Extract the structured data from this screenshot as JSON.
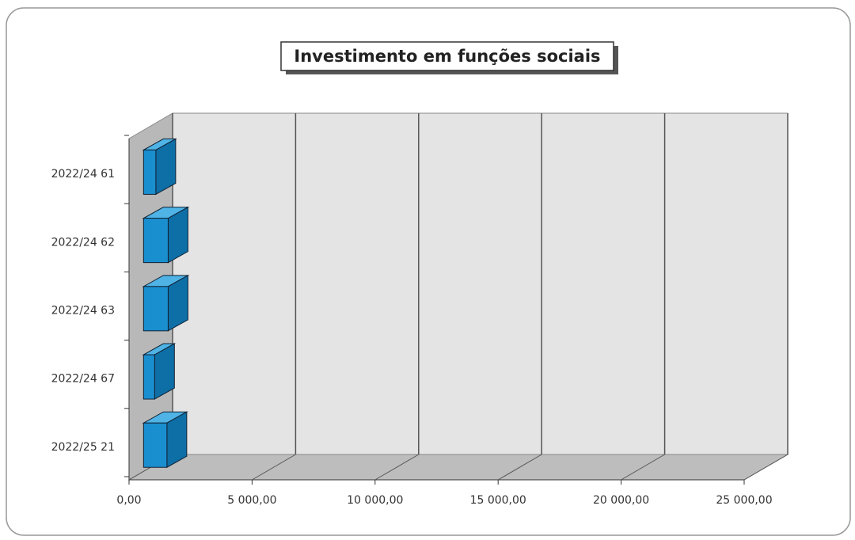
{
  "chart_data": {
    "type": "bar3d_horizontal",
    "title": "Investimento em funções sociais",
    "categories": [
      "2022/24 61",
      "2022/24 62",
      "2022/24 63",
      "2022/24 67",
      "2022/25 21"
    ],
    "values": [
      500,
      1000,
      1000,
      450,
      950
    ],
    "color": "#1a8fd0",
    "xlim": [
      0,
      25000
    ],
    "xticks": [
      {
        "value": 0,
        "label": "0,00"
      },
      {
        "value": 5000,
        "label": "5 000,00"
      },
      {
        "value": 10000,
        "label": "10 000,00"
      },
      {
        "value": 15000,
        "label": "15 000,00"
      },
      {
        "value": 20000,
        "label": "20 000,00"
      },
      {
        "value": 25000,
        "label": "25 000,00"
      }
    ],
    "grid": true
  }
}
